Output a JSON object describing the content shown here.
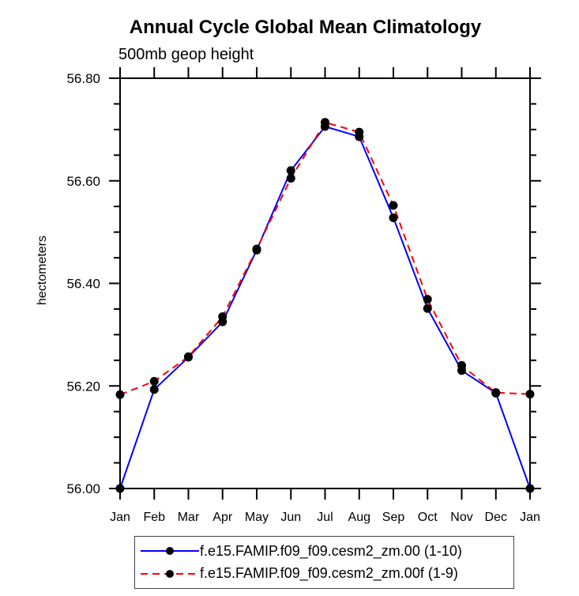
{
  "title": "Annual Cycle Global Mean Climatology",
  "subtitle": "500mb geop height",
  "chart_data": {
    "type": "line",
    "title": "Annual Cycle Global Mean Climatology",
    "subtitle": "500mb geop height",
    "xlabel": "",
    "ylabel": "hectometers",
    "x_categories": [
      "Jan",
      "Feb",
      "Mar",
      "Apr",
      "May",
      "Jun",
      "Jul",
      "Aug",
      "Sep",
      "Oct",
      "Nov",
      "Dec",
      "Jan"
    ],
    "ylim": [
      56.0,
      56.8
    ],
    "y_major_step": 0.2,
    "y_minor_step": 0.05,
    "y_tick_labels": [
      "56.00",
      "56.20",
      "56.40",
      "56.60",
      "56.80"
    ],
    "grid": false,
    "legend_position": "bottom",
    "axis_color": "#000000",
    "marker_color": "#000000",
    "marker": "filled-circle",
    "series": [
      {
        "name": "f.e15.FAMIP.f09_f09.cesm2_zm.00 (1-10)",
        "color": "#0000ff",
        "style": "solid",
        "values": [
          56.0,
          56.193,
          56.256,
          56.325,
          56.465,
          56.62,
          56.706,
          56.686,
          56.528,
          56.351,
          56.23,
          56.186,
          56.0
        ]
      },
      {
        "name": "f.e15.FAMIP.f09_f09.cesm2_zm.00f (1-9)",
        "color": "#ff0000",
        "style": "dashed",
        "values": [
          56.183,
          56.209,
          56.257,
          56.335,
          56.467,
          56.605,
          56.714,
          56.695,
          56.552,
          56.369,
          56.24,
          56.187,
          56.184
        ]
      }
    ]
  }
}
